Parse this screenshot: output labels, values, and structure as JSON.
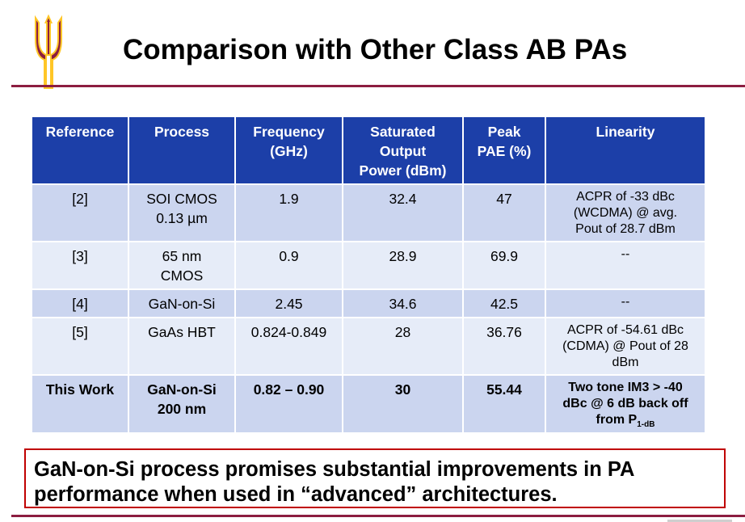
{
  "title": "Comparison with Other Class AB PAs",
  "logo": {
    "icon": "pitchfork-icon",
    "color_primary": "#8c1d40",
    "color_accent": "#ffc627"
  },
  "table": {
    "headers": [
      {
        "lines": [
          "Reference"
        ]
      },
      {
        "lines": [
          "Process"
        ]
      },
      {
        "lines": [
          "Frequency",
          "(GHz)"
        ]
      },
      {
        "lines": [
          "Saturated",
          "Output",
          "Power (dBm)"
        ]
      },
      {
        "lines": [
          "Peak",
          "PAE (%)"
        ]
      },
      {
        "lines": [
          "Linearity"
        ]
      }
    ],
    "rows": [
      {
        "reference": "[2]",
        "process": [
          "SOI CMOS",
          "0.13 µm"
        ],
        "frequency": "1.9",
        "power": "32.4",
        "pae": "47",
        "linearity": [
          "ACPR of -33 dBc",
          "(WCDMA) @ avg.",
          "Pout of 28.7 dBm"
        ]
      },
      {
        "reference": "[3]",
        "process": [
          "65 nm",
          "CMOS"
        ],
        "frequency": "0.9",
        "power": "28.9",
        "pae": "69.9",
        "linearity": [
          "--"
        ]
      },
      {
        "reference": "[4]",
        "process": [
          "GaN-on-Si"
        ],
        "frequency": "2.45",
        "power": "34.6",
        "pae": "42.5",
        "linearity": [
          "--"
        ]
      },
      {
        "reference": "[5]",
        "process": [
          "GaAs HBT"
        ],
        "frequency": "0.824-0.849",
        "power": "28",
        "pae": "36.76",
        "linearity": [
          "ACPR of -54.61 dBc",
          "(CDMA) @ Pout of 28",
          "dBm"
        ]
      },
      {
        "reference": "This Work",
        "process": [
          "GaN-on-Si",
          "200 nm"
        ],
        "frequency": "0.82 – 0.90",
        "power": "30",
        "pae": "55.44",
        "linearity": [
          "Two tone IM3 > -40",
          "dBc @ 6 dB back off"
        ],
        "linearity_last": {
          "prefix": "from P",
          "subscript": "1-dB"
        }
      }
    ]
  },
  "callout": {
    "line1": "GaN-on-Si process promises substantial improvements in PA",
    "line2": "performance when used in “advanced” architectures."
  },
  "colors": {
    "header_bg": "#1c3fa8",
    "row_dark": "#cbd5ef",
    "row_light": "#e6ecf8",
    "rule": "#8c1d40",
    "callout_border": "#c00000"
  }
}
